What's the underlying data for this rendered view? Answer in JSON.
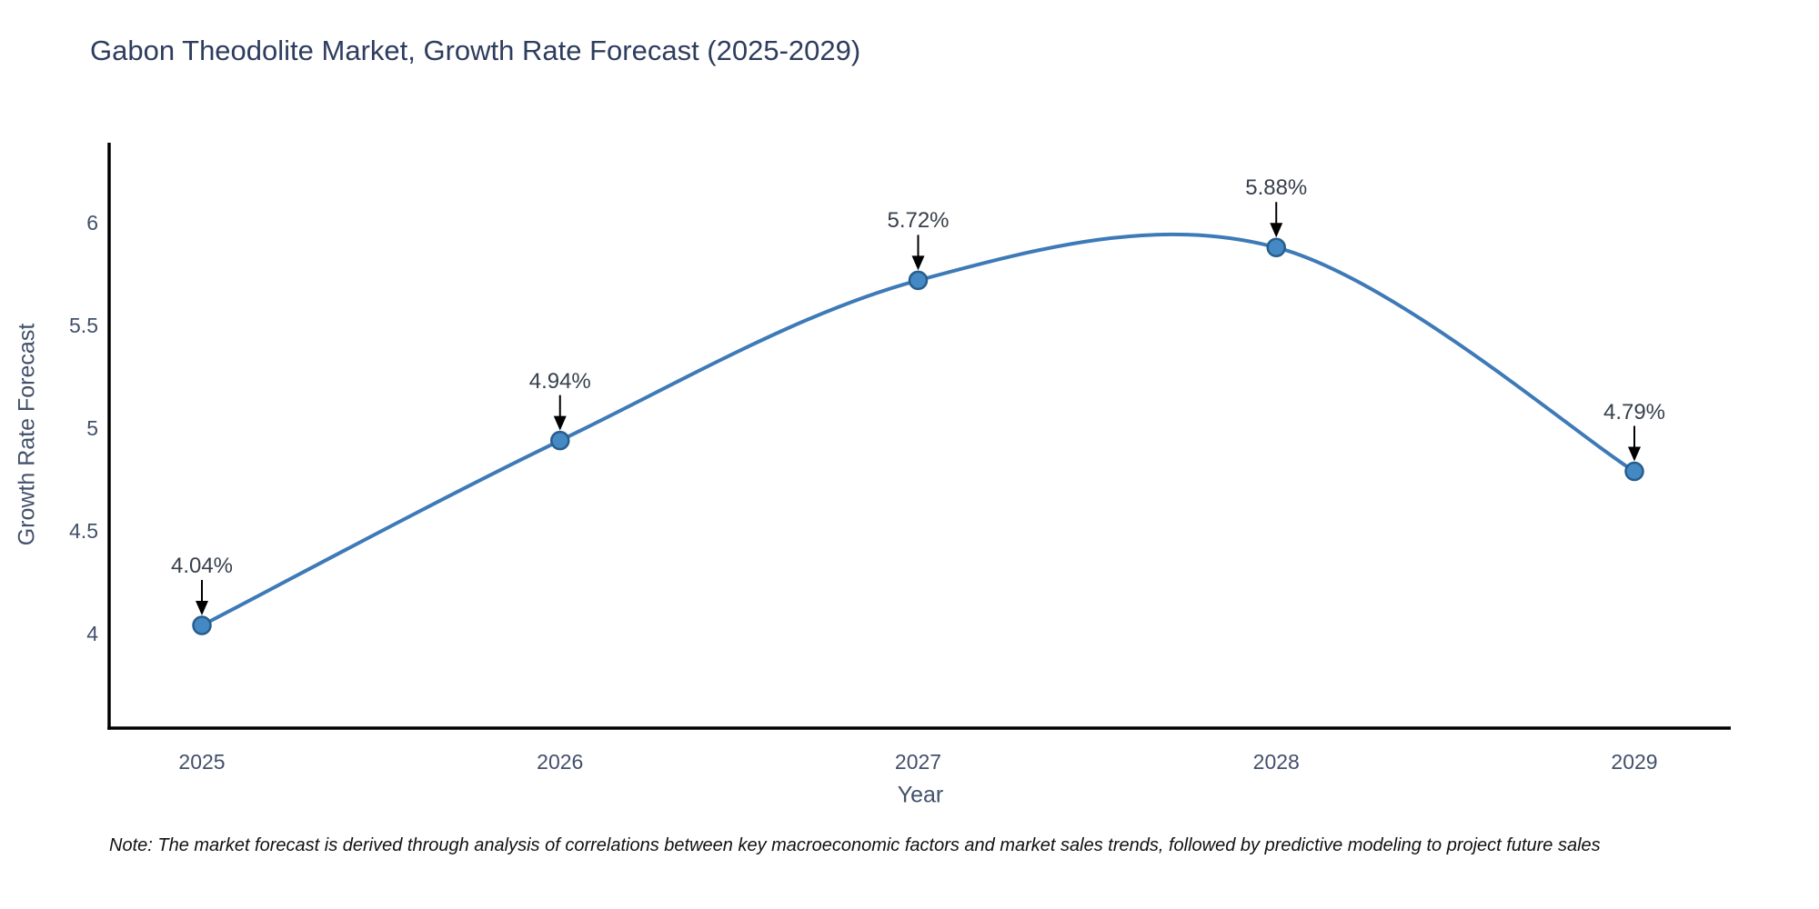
{
  "chart_data": {
    "type": "line",
    "title": "Gabon Theodolite Market, Growth Rate Forecast (2025-2029)",
    "xlabel": "Year",
    "ylabel": "Growth Rate Forecast",
    "x_categories": [
      "2025",
      "2026",
      "2027",
      "2028",
      "2029"
    ],
    "series": [
      {
        "name": "Growth Rate Forecast",
        "values": [
          4.04,
          4.94,
          5.72,
          5.88,
          4.79
        ]
      }
    ],
    "point_labels": [
      "4.04%",
      "4.94%",
      "5.72%",
      "5.88%",
      "4.79%"
    ],
    "y_ticks": [
      "4",
      "4.5",
      "5",
      "5.5",
      "6"
    ],
    "y_tick_values": [
      4,
      4.5,
      5,
      5.5,
      6
    ],
    "ylim": [
      3.54,
      6.39
    ],
    "grid": false,
    "legend": "none",
    "line_smoothing": "spline",
    "colors": {
      "line": "#3d7ab7",
      "marker_fill": "#4489c4",
      "marker_stroke": "#275d8d",
      "arrow": "#000000",
      "axis_line": "#000000",
      "title_text": "#2e3d5e",
      "tick_text": "#42506b",
      "annotation_text": "#37404d",
      "note_text": "#111111"
    }
  },
  "note": {
    "text": "Note: The market forecast is derived through analysis of correlations between key macroeconomic factors and market sales trends, followed by predictive modeling to project future sales"
  }
}
